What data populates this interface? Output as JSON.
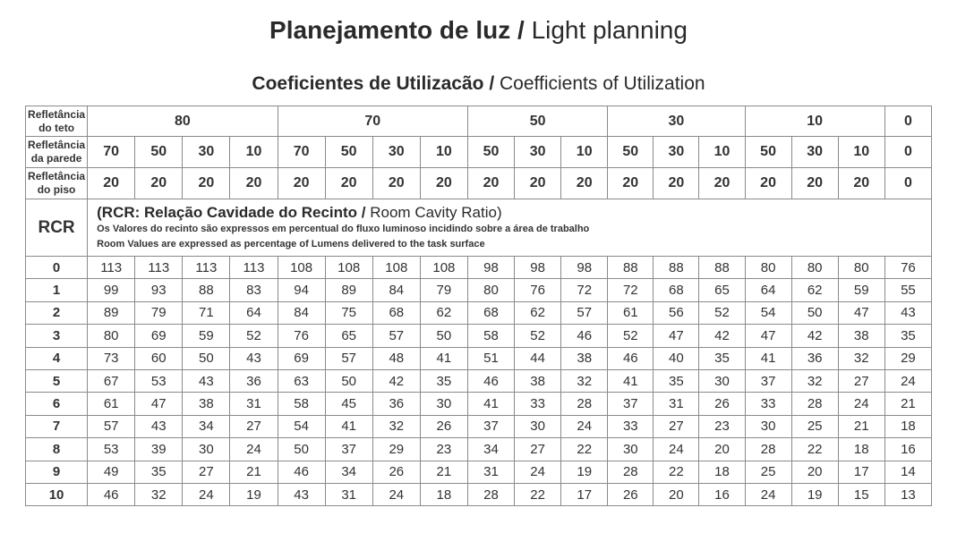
{
  "title_bold": "Planejamento de luz /",
  "title_normal": "Light planning",
  "subtitle_bold": "Coeficientes de Utilizacão /",
  "subtitle_normal": "Coefficients of Utilization",
  "labels": {
    "ceiling": [
      "Refletância",
      "do teto"
    ],
    "wall": [
      "Refletância",
      "da parede"
    ],
    "floor": [
      "Refletância",
      "do piso"
    ],
    "rcr": "RCR"
  },
  "ceiling_values": [
    "80",
    "70",
    "50",
    "30",
    "10",
    "0"
  ],
  "wall_values": [
    "70",
    "50",
    "30",
    "10",
    "70",
    "50",
    "30",
    "10",
    "50",
    "30",
    "10",
    "50",
    "30",
    "10",
    "50",
    "30",
    "10",
    "0"
  ],
  "floor_values": [
    "20",
    "20",
    "20",
    "20",
    "20",
    "20",
    "20",
    "20",
    "20",
    "20",
    "20",
    "20",
    "20",
    "20",
    "20",
    "20",
    "20",
    "0"
  ],
  "info": {
    "line1_bold": "(RCR: Relação Cavidade do Recinto /",
    "line1_normal": "Room Cavity Ratio)",
    "line2": "Os Valores do recinto são expressos em percentual do fluxo luminoso incidindo sobre a área de trabalho",
    "line3": "Room Values are expressed as percentage of Lumens delivered to the task surface"
  },
  "rows": [
    {
      "rcr": "0",
      "values": [
        "113",
        "113",
        "113",
        "113",
        "108",
        "108",
        "108",
        "108",
        "98",
        "98",
        "98",
        "88",
        "88",
        "88",
        "80",
        "80",
        "80",
        "76"
      ]
    },
    {
      "rcr": "1",
      "values": [
        "99",
        "93",
        "88",
        "83",
        "94",
        "89",
        "84",
        "79",
        "80",
        "76",
        "72",
        "72",
        "68",
        "65",
        "64",
        "62",
        "59",
        "55"
      ]
    },
    {
      "rcr": "2",
      "values": [
        "89",
        "79",
        "71",
        "64",
        "84",
        "75",
        "68",
        "62",
        "68",
        "62",
        "57",
        "61",
        "56",
        "52",
        "54",
        "50",
        "47",
        "43"
      ]
    },
    {
      "rcr": "3",
      "values": [
        "80",
        "69",
        "59",
        "52",
        "76",
        "65",
        "57",
        "50",
        "58",
        "52",
        "46",
        "52",
        "47",
        "42",
        "47",
        "42",
        "38",
        "35"
      ]
    },
    {
      "rcr": "4",
      "values": [
        "73",
        "60",
        "50",
        "43",
        "69",
        "57",
        "48",
        "41",
        "51",
        "44",
        "38",
        "46",
        "40",
        "35",
        "41",
        "36",
        "32",
        "29"
      ]
    },
    {
      "rcr": "5",
      "values": [
        "67",
        "53",
        "43",
        "36",
        "63",
        "50",
        "42",
        "35",
        "46",
        "38",
        "32",
        "41",
        "35",
        "30",
        "37",
        "32",
        "27",
        "24"
      ]
    },
    {
      "rcr": "6",
      "values": [
        "61",
        "47",
        "38",
        "31",
        "58",
        "45",
        "36",
        "30",
        "41",
        "33",
        "28",
        "37",
        "31",
        "26",
        "33",
        "28",
        "24",
        "21"
      ]
    },
    {
      "rcr": "7",
      "values": [
        "57",
        "43",
        "34",
        "27",
        "54",
        "41",
        "32",
        "26",
        "37",
        "30",
        "24",
        "33",
        "27",
        "23",
        "30",
        "25",
        "21",
        "18"
      ]
    },
    {
      "rcr": "8",
      "values": [
        "53",
        "39",
        "30",
        "24",
        "50",
        "37",
        "29",
        "23",
        "34",
        "27",
        "22",
        "30",
        "24",
        "20",
        "28",
        "22",
        "18",
        "16"
      ]
    },
    {
      "rcr": "9",
      "values": [
        "49",
        "35",
        "27",
        "21",
        "46",
        "34",
        "26",
        "21",
        "31",
        "24",
        "19",
        "28",
        "22",
        "18",
        "25",
        "20",
        "17",
        "14"
      ]
    },
    {
      "rcr": "10",
      "values": [
        "46",
        "32",
        "24",
        "19",
        "43",
        "31",
        "24",
        "18",
        "28",
        "22",
        "17",
        "26",
        "20",
        "16",
        "24",
        "19",
        "15",
        "13"
      ]
    }
  ]
}
